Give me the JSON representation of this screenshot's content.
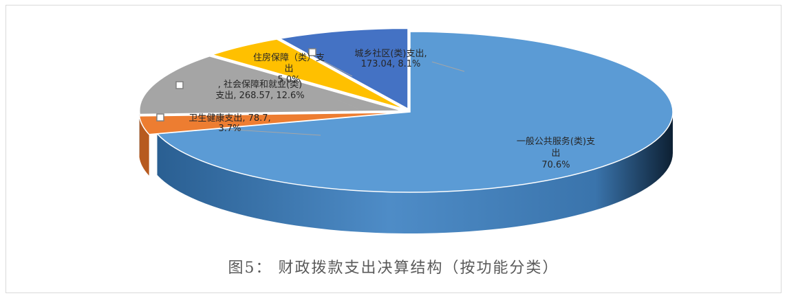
{
  "caption": "图5： 财政拨款支出决算结构（按功能分类）",
  "chart_data": {
    "type": "pie",
    "style": "3d-exploded",
    "title": "",
    "slices": [
      {
        "label_lines": [
          "一般公共服务(类)支",
          "出",
          "70.6%"
        ],
        "value": 70.6,
        "color": "#5b9bd5",
        "side": "#2f6ea8"
      },
      {
        "label_lines": [
          "卫生健康支出, 78.7,",
          "3.7%"
        ],
        "value": 3.7,
        "color": "#ed7d31",
        "side": "#b75a1f"
      },
      {
        "label_lines": [
          ", 社会保障和就业(类)",
          "支出, 268.57, 12.6%"
        ],
        "value": 12.6,
        "color": "#a5a5a5",
        "side": "#777777"
      },
      {
        "label_lines": [
          "住房保障（类）支",
          "出",
          "5.0%"
        ],
        "value": 5.0,
        "color": "#ffc000",
        "side": "#c59300"
      },
      {
        "label_lines": [
          "城乡社区(类)支出,",
          "173.04, 8.1%"
        ],
        "value": 8.1,
        "color": "#4472c4",
        "side": "#2d4f8f"
      }
    ]
  }
}
